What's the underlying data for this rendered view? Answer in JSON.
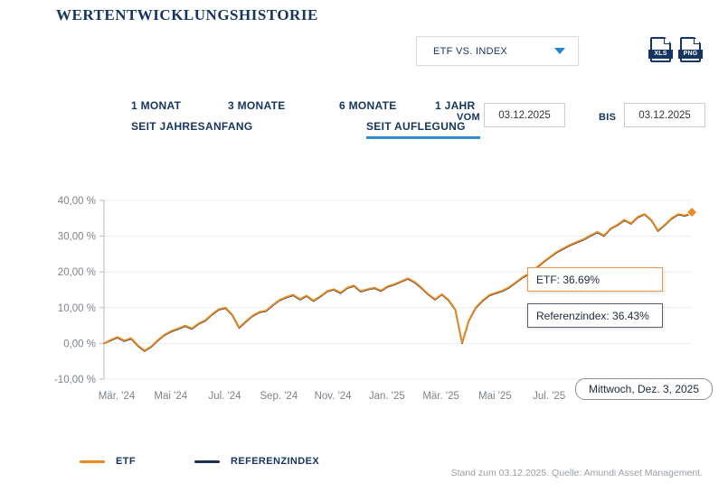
{
  "header": {
    "title": "WERTENTWICKLUNGSHISTORIE"
  },
  "toolbar": {
    "dropdown_value": "ETF VS. INDEX",
    "export_xls": "XLS",
    "export_png": "PNG"
  },
  "tabs": {
    "items": [
      {
        "label": "1 MONAT",
        "active": false
      },
      {
        "label": "3 MONATE",
        "active": false
      },
      {
        "label": "6 MONATE",
        "active": false
      },
      {
        "label": "1 JAHR",
        "active": false
      },
      {
        "label": "SEIT JAHRESANFANG",
        "active": false
      },
      {
        "label": "SEIT AUFLEGUNG",
        "active": true
      }
    ]
  },
  "date_filter": {
    "vom_label": "VOM",
    "vom_value": "03.12.2025",
    "bis_label": "BIS",
    "bis_value": "03.12.2025"
  },
  "chart_data": {
    "type": "line",
    "title": "",
    "ylim": [
      -10,
      40
    ],
    "grid": true,
    "yticks": [
      {
        "value": 40,
        "label": "40,00 %"
      },
      {
        "value": 30,
        "label": "30,00 %"
      },
      {
        "value": 20,
        "label": "20,00 %"
      },
      {
        "value": 10,
        "label": "10,00 %"
      },
      {
        "value": 0,
        "label": "0,00 %"
      },
      {
        "value": -10,
        "label": "-10,00 %"
      }
    ],
    "xticks": [
      {
        "index": 0,
        "label": "Mär. '24"
      },
      {
        "index": 8,
        "label": "Mai '24"
      },
      {
        "index": 16,
        "label": "Jul. '24"
      },
      {
        "index": 24,
        "label": "Sep. '24"
      },
      {
        "index": 32,
        "label": "Nov. '24"
      },
      {
        "index": 40,
        "label": "Jan. '25"
      },
      {
        "index": 48,
        "label": "Mär. '25"
      },
      {
        "index": 56,
        "label": "Mai '25"
      },
      {
        "index": 64,
        "label": "Jul. '25"
      }
    ],
    "series": [
      {
        "name": "ETF",
        "color": "#ee8a1c",
        "final_value": 36.69,
        "values": [
          0.0,
          1.0,
          1.8,
          0.8,
          1.5,
          -0.5,
          -2.0,
          -0.8,
          1.0,
          2.5,
          3.5,
          4.2,
          5.0,
          4.2,
          5.6,
          6.5,
          8.2,
          9.6,
          10.0,
          8.0,
          4.5,
          6.2,
          7.8,
          8.8,
          9.2,
          10.8,
          12.2,
          13.0,
          13.6,
          12.4,
          13.4,
          12.0,
          13.2,
          14.6,
          15.2,
          14.2,
          15.6,
          16.2,
          14.6,
          15.2,
          15.6,
          14.8,
          16.0,
          16.6,
          17.4,
          18.2,
          17.2,
          15.6,
          13.8,
          12.4,
          13.8,
          12.2,
          9.5,
          0.2,
          6.5,
          10.0,
          12.0,
          13.5,
          14.2,
          14.8,
          15.8,
          17.2,
          18.6,
          19.6,
          21.2,
          22.8,
          24.2,
          25.6,
          26.6,
          27.6,
          28.4,
          29.2,
          30.2,
          31.2,
          30.2,
          32.2,
          33.2,
          34.6,
          33.6,
          35.4,
          36.2,
          34.6,
          31.6,
          33.2,
          35.0,
          36.2,
          35.8,
          36.69
        ]
      },
      {
        "name": "REFERENZINDEX",
        "color": "#16304f",
        "final_value": 36.43,
        "values": [
          0.0,
          0.85,
          1.65,
          0.65,
          1.35,
          -0.65,
          -2.15,
          -0.95,
          0.85,
          2.35,
          3.35,
          4.05,
          4.85,
          4.05,
          5.45,
          6.35,
          8.05,
          9.45,
          9.85,
          7.85,
          4.35,
          6.05,
          7.65,
          8.65,
          9.05,
          10.65,
          12.05,
          12.85,
          13.45,
          12.25,
          13.25,
          11.85,
          13.05,
          14.45,
          15.05,
          14.05,
          15.45,
          16.05,
          14.45,
          15.05,
          15.45,
          14.65,
          15.85,
          16.45,
          17.25,
          18.05,
          17.05,
          15.45,
          13.65,
          12.25,
          13.65,
          12.05,
          9.35,
          0.05,
          6.35,
          9.85,
          11.85,
          13.35,
          14.05,
          14.65,
          15.65,
          17.05,
          18.45,
          19.45,
          21.05,
          22.65,
          24.05,
          25.45,
          26.45,
          27.45,
          28.25,
          29.05,
          30.05,
          31.05,
          30.05,
          32.05,
          33.05,
          34.45,
          33.45,
          35.25,
          36.05,
          34.45,
          31.45,
          33.05,
          34.85,
          36.05,
          35.65,
          36.43
        ]
      }
    ],
    "end_marker": {
      "series": "ETF",
      "shape": "diamond",
      "color": "#ee8a1c"
    },
    "legend_position": "bottom"
  },
  "tooltips": {
    "etf": "ETF: 36.69%",
    "referenzindex": "Referenzindex: 36.43%",
    "date": "Mittwoch, Dez. 3, 2025"
  },
  "legend": {
    "items": [
      {
        "label": "ETF",
        "color": "#ee8a1c"
      },
      {
        "label": "REFERENZINDEX",
        "color": "#16304f"
      }
    ]
  },
  "footer": {
    "note": "Stand zum 03.12.2025. Quelle: Amundi Asset Management."
  }
}
